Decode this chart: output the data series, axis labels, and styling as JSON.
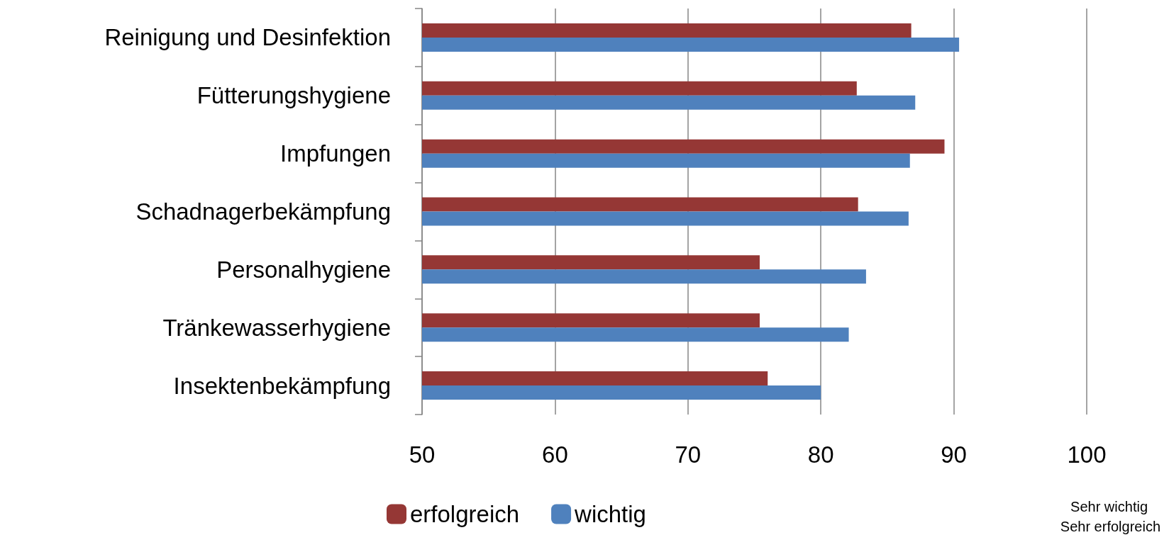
{
  "chart_data": {
    "type": "bar",
    "orientation": "horizontal",
    "categories": [
      "Reinigung und Desinfektion",
      "Fütterungshygiene",
      "Impfungen",
      "Schadnagerbekämpfung",
      "Personalhygiene",
      "Tränkewasserhygiene",
      "Insektenbekämpfung"
    ],
    "series": [
      {
        "name": "erfolgreich",
        "color": "#953735",
        "values": [
          86.8,
          82.7,
          89.3,
          82.8,
          75.4,
          75.4,
          76.0
        ]
      },
      {
        "name": "wichtig",
        "color": "#4f81bd",
        "values": [
          90.4,
          87.1,
          86.7,
          86.6,
          83.4,
          82.1,
          80.0
        ]
      }
    ],
    "xlim": [
      50,
      100
    ],
    "xticks": [
      50,
      60,
      70,
      80,
      90,
      100
    ],
    "grid": "x",
    "legend": "bottom",
    "annotations": [
      "Sehr wichtig",
      "Sehr erfolgreich"
    ]
  }
}
